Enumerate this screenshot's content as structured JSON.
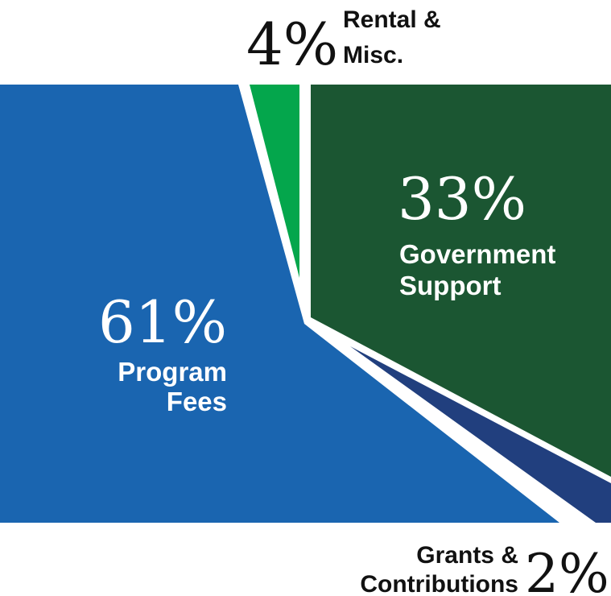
{
  "chart_data": {
    "type": "pie",
    "title": "",
    "slices": [
      {
        "name": "Program Fees",
        "value": 61,
        "label_pct": "61%",
        "label_lines": [
          "Program",
          "Fees"
        ],
        "color": "#1a65b0",
        "label_color": "#ffffff"
      },
      {
        "name": "Rental & Misc.",
        "value": 4,
        "label_pct": "4%",
        "label_lines": [
          "Rental &",
          "Misc."
        ],
        "color": "#04a64c",
        "label_color": "#111111"
      },
      {
        "name": "Government Support",
        "value": 33,
        "label_pct": "33%",
        "label_lines": [
          "Government",
          "Support"
        ],
        "color": "#1b5632",
        "label_color": "#ffffff"
      },
      {
        "name": "Grants & Contributions",
        "value": 2,
        "label_pct": "2%",
        "label_lines": [
          "Grants &",
          "Contributions"
        ],
        "color": "#213f7e",
        "label_color": "#111111"
      }
    ]
  }
}
